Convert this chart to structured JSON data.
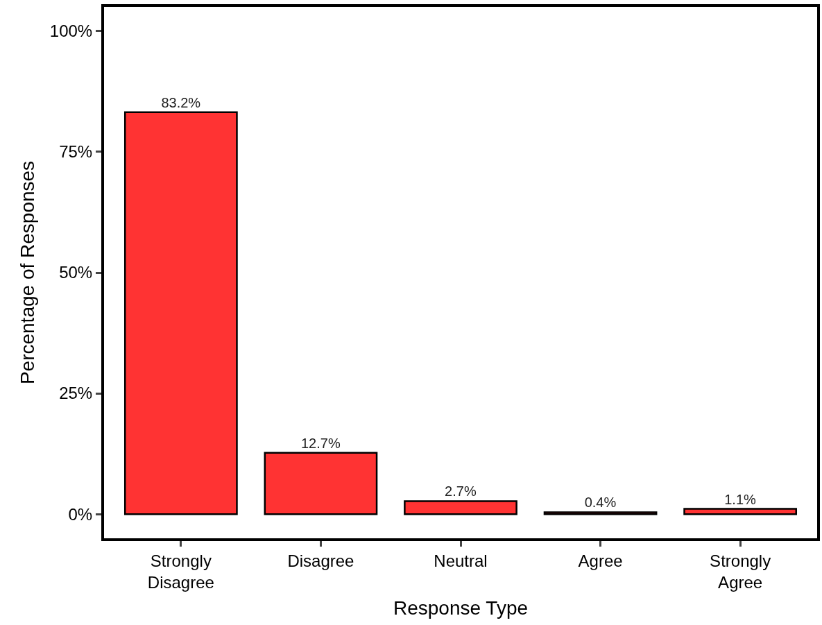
{
  "chart_data": {
    "type": "bar",
    "xlabel": "Response Type",
    "ylabel": "Percentage of Responses",
    "categories": [
      "Strongly Disagree",
      "Disagree",
      "Neutral",
      "Agree",
      "Strongly Agree"
    ],
    "values": [
      83.2,
      12.7,
      2.7,
      0.4,
      1.1
    ],
    "value_labels": [
      "83.2%",
      "12.7%",
      "2.7%",
      "0.4%",
      "1.1%"
    ],
    "color": "#ff3333",
    "ylim": [
      -5,
      105
    ],
    "yticks": [
      {
        "value": 0,
        "label": "0%"
      },
      {
        "value": 25,
        "label": "25%"
      },
      {
        "value": 50,
        "label": "50%"
      },
      {
        "value": 75,
        "label": "75%"
      },
      {
        "value": 100,
        "label": "100%"
      }
    ]
  }
}
